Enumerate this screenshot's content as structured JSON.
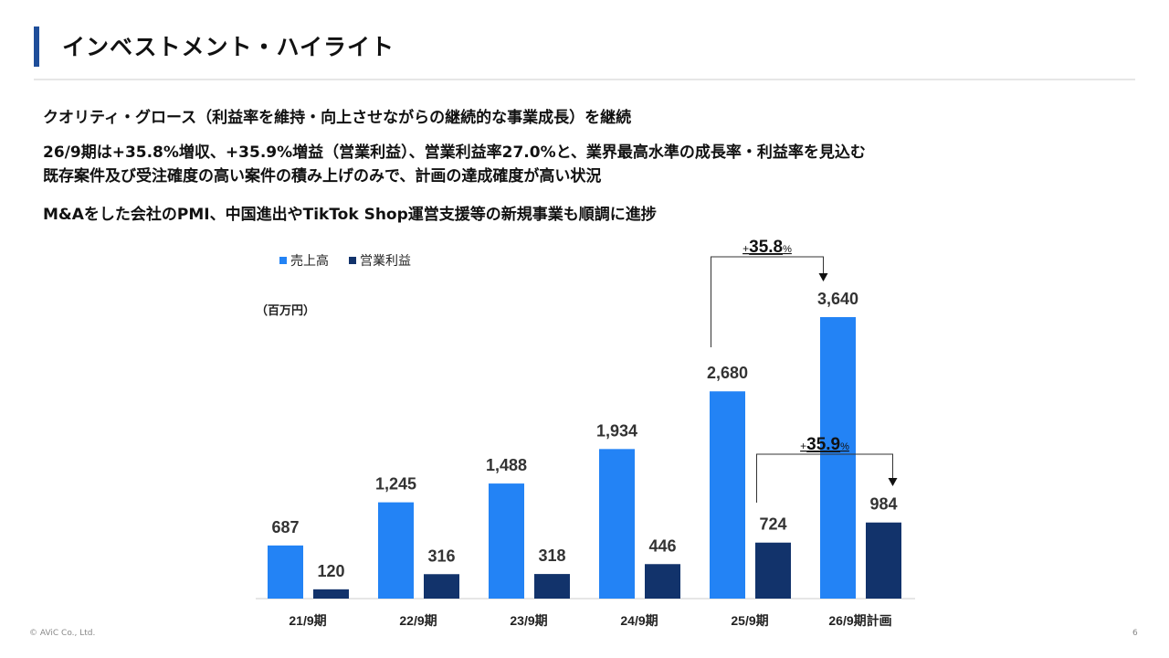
{
  "header": {
    "title": "インベストメント・ハイライト"
  },
  "bullets": [
    "クオリティ・グロース（利益率を維持・向上させながらの継続的な事業成長）を継続",
    "26/9期は+35.8%増収、+35.9%増益（営業利益）、営業利益率27.0%と、業界最高水準の成長率・利益率を見込む",
    "既存案件及び受注確度の高い案件の積み上げのみで、計画の達成確度が高い状況",
    "M&Aをした会社のPMI、中国進出やTikTok Shop運営支援等の新規事業も順調に進捗"
  ],
  "footer": {
    "copyright": "© AViC Co., Ltd.",
    "page": "6"
  },
  "chart_data": {
    "type": "bar",
    "unit": "（百万円）",
    "categories": [
      "21/9期",
      "22/9期",
      "23/9期",
      "24/9期",
      "25/9期",
      "26/9期計画"
    ],
    "series": [
      {
        "name": "売上高",
        "color": "#2383f5",
        "values": [
          687,
          1245,
          1488,
          1934,
          2680,
          3640
        ],
        "labels": [
          "687",
          "1,245",
          "1,488",
          "1,934",
          "2,680",
          "3,640"
        ]
      },
      {
        "name": "営業利益",
        "color": "#12336b",
        "values": [
          120,
          316,
          318,
          446,
          724,
          984
        ],
        "labels": [
          "120",
          "316",
          "318",
          "446",
          "724",
          "984"
        ]
      }
    ],
    "annotations": [
      {
        "series": 0,
        "from": 4,
        "to": 5,
        "sign": "+",
        "value": "35.8",
        "pct": "%"
      },
      {
        "series": 1,
        "from": 4,
        "to": 5,
        "sign": "+",
        "value": "35.9",
        "pct": "%"
      }
    ],
    "ylim": [
      0,
      3640
    ]
  }
}
